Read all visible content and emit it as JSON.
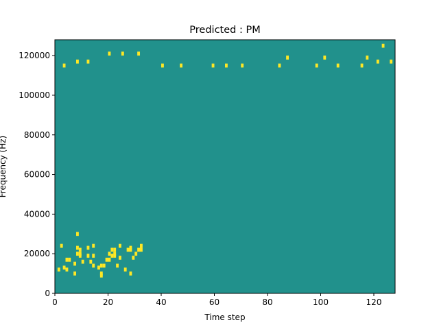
{
  "chart_data": {
    "type": "heatmap",
    "title": "Predicted : PM",
    "xlabel": "Time step",
    "ylabel": "Frequency (Hz)",
    "xlim": [
      0,
      128
    ],
    "ylim": [
      0,
      128000
    ],
    "x_ticks": [
      0,
      20,
      40,
      60,
      80,
      100,
      120
    ],
    "y_ticks": [
      0,
      20000,
      40000,
      60000,
      80000,
      100000,
      120000
    ],
    "x_tick_labels": [
      "0",
      "20",
      "40",
      "60",
      "80",
      "100",
      "120"
    ],
    "y_tick_labels": [
      "0",
      "20000",
      "40000",
      "60000",
      "80000",
      "100000",
      "120000"
    ],
    "grid": false,
    "legend": "none",
    "value_levels": [
      -1,
      0,
      1
    ],
    "colormap": {
      "-1": "#440154",
      "0": "#21918c",
      "1": "#fde725"
    },
    "cell_height_hz": 2000,
    "cells": [
      [
        1,
        11000,
        1
      ],
      [
        2,
        23000,
        1
      ],
      [
        3,
        12000,
        1
      ],
      [
        4,
        11000,
        1
      ],
      [
        4,
        16000,
        1
      ],
      [
        5,
        16000,
        1
      ],
      [
        7,
        14000,
        1
      ],
      [
        7,
        9000,
        1
      ],
      [
        8,
        19000,
        1
      ],
      [
        8,
        29000,
        1
      ],
      [
        8,
        22000,
        1
      ],
      [
        9,
        18000,
        1
      ],
      [
        9,
        19000,
        1
      ],
      [
        9,
        21000,
        1
      ],
      [
        10,
        15000,
        1
      ],
      [
        12,
        18000,
        1
      ],
      [
        12,
        22000,
        1
      ],
      [
        13,
        15000,
        1
      ],
      [
        14,
        23000,
        1
      ],
      [
        14,
        13000,
        1
      ],
      [
        14,
        18000,
        1
      ],
      [
        16,
        12000,
        1
      ],
      [
        17,
        8000,
        1
      ],
      [
        17,
        9000,
        1
      ],
      [
        17,
        13000,
        1
      ],
      [
        18,
        13000,
        1
      ],
      [
        19,
        16000,
        1
      ],
      [
        20,
        16000,
        1
      ],
      [
        20,
        19000,
        1
      ],
      [
        21,
        18000,
        1
      ],
      [
        21,
        21000,
        1
      ],
      [
        22,
        18000,
        1
      ],
      [
        22,
        19000,
        1
      ],
      [
        22,
        21000,
        1
      ],
      [
        23,
        13000,
        1
      ],
      [
        24,
        23000,
        1
      ],
      [
        24,
        17000,
        1
      ],
      [
        26,
        11000,
        1
      ],
      [
        27,
        21000,
        1
      ],
      [
        28,
        9000,
        1
      ],
      [
        28,
        21000,
        1
      ],
      [
        28,
        22000,
        1
      ],
      [
        29,
        17000,
        1
      ],
      [
        30,
        19000,
        1
      ],
      [
        31,
        21000,
        1
      ],
      [
        32,
        21000,
        1
      ],
      [
        32,
        23000,
        1
      ],
      [
        3,
        114000,
        1
      ],
      [
        8,
        116000,
        1
      ],
      [
        12,
        116000,
        1
      ],
      [
        20,
        120000,
        1
      ],
      [
        25,
        120000,
        1
      ],
      [
        31,
        120000,
        1
      ],
      [
        40,
        114000,
        1
      ],
      [
        47,
        114000,
        1
      ],
      [
        59,
        114000,
        1
      ],
      [
        64,
        114000,
        1
      ],
      [
        70,
        114000,
        1
      ],
      [
        84,
        114000,
        1
      ],
      [
        98,
        114000,
        1
      ],
      [
        106,
        114000,
        1
      ],
      [
        115,
        114000,
        1
      ],
      [
        121,
        116000,
        1
      ],
      [
        126,
        116000,
        1
      ],
      [
        87,
        118000,
        1
      ],
      [
        101,
        118000,
        1
      ],
      [
        117,
        118000,
        1
      ],
      [
        123,
        124000,
        1
      ]
    ]
  }
}
